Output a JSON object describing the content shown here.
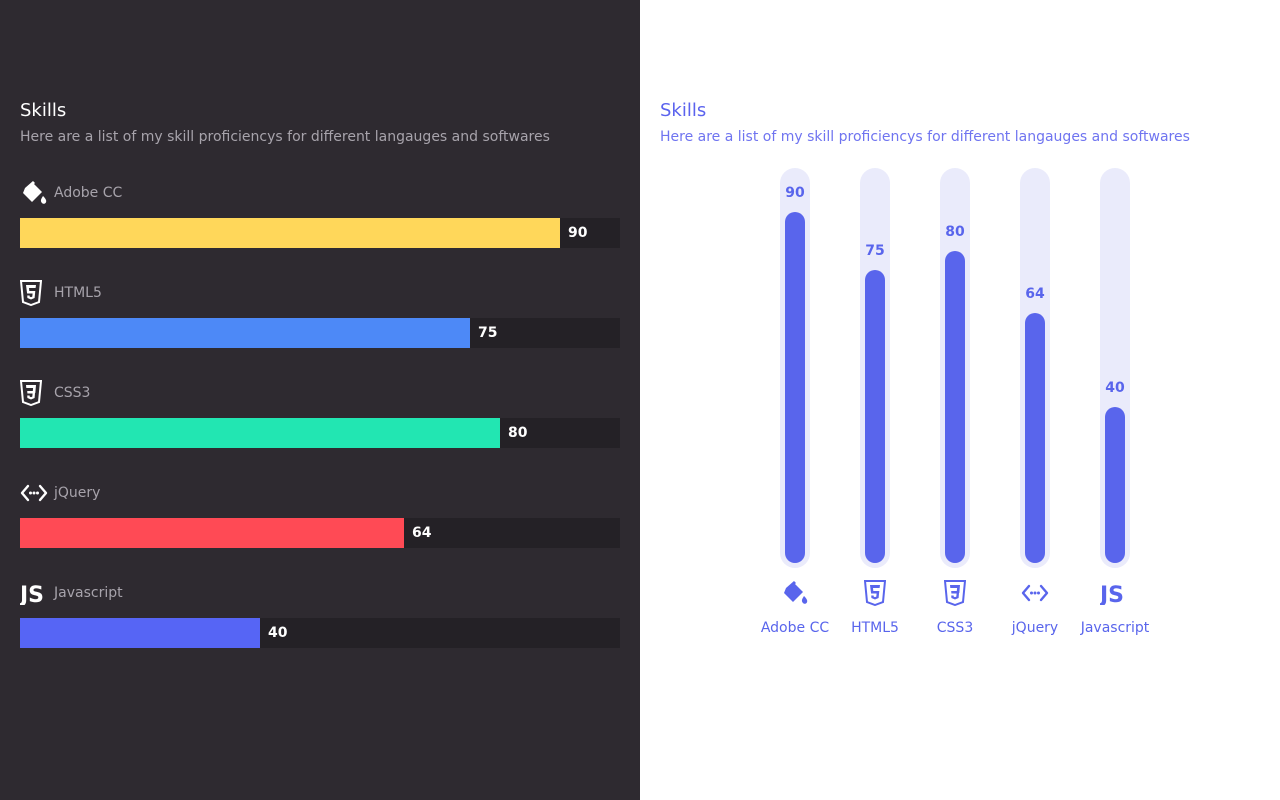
{
  "left": {
    "title": "Skills",
    "subtitle": "Here are a list of my skill proficiencys for different langauges and softwares"
  },
  "right": {
    "title": "Skills",
    "subtitle": "Here are a list of my skill proficiencys for different langauges and softwares"
  },
  "colors": {
    "dark_bg": "#2e2a30",
    "track_dark": "#242126",
    "accent": "#5965ec",
    "track_light": "#eaebfb"
  },
  "chart_data": [
    {
      "type": "bar",
      "orientation": "horizontal",
      "categories": [
        "Adobe CC",
        "HTML5",
        "CSS3",
        "jQuery",
        "Javascript"
      ],
      "values": [
        90,
        75,
        80,
        64,
        40
      ],
      "icons": [
        "paint-bucket-icon",
        "html5-icon",
        "css3-icon",
        "code-icon",
        "js-icon"
      ],
      "bar_colors": [
        "#ffd75a",
        "#4d89f7",
        "#22e6b2",
        "#ff4a55",
        "#5665f5"
      ],
      "title": "Skills",
      "xlim": [
        0,
        100
      ],
      "grid": false
    },
    {
      "type": "bar",
      "orientation": "vertical",
      "categories": [
        "Adobe CC",
        "HTML5",
        "CSS3",
        "jQuery",
        "Javascript"
      ],
      "values": [
        90,
        75,
        80,
        64,
        40
      ],
      "icons": [
        "paint-bucket-icon",
        "html5-icon",
        "css3-icon",
        "code-icon",
        "js-icon"
      ],
      "title": "Skills",
      "ylim": [
        0,
        100
      ],
      "grid": false
    }
  ]
}
